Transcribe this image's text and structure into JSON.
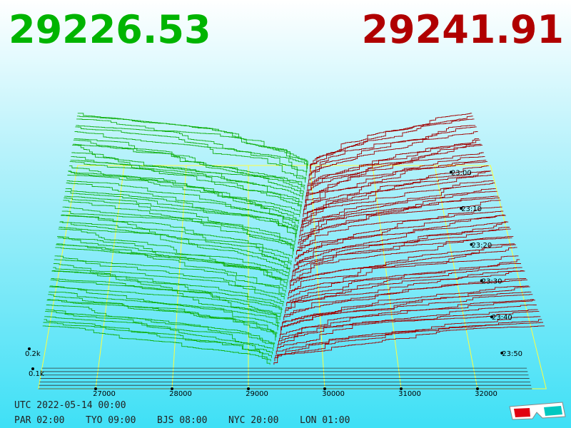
{
  "header": {
    "bid_price": 29226.53,
    "ask_price": 29241.91
  },
  "price_axis": {
    "ticks": [
      27000,
      28000,
      29000,
      30000,
      31000,
      32000
    ]
  },
  "time_axis": {
    "ticks": [
      "23:00",
      "23:10",
      "23:20",
      "23:30",
      "23:40",
      "23:50"
    ]
  },
  "depth_axis": {
    "ticks": [
      "0.1k",
      "0.2k"
    ]
  },
  "footer": {
    "utc": "UTC 2022-05-14 00:00",
    "zones": [
      "PAR 02:00",
      "TYO 09:00",
      "BJS 08:00",
      "NYC 20:00",
      "LON 01:00"
    ]
  }
}
